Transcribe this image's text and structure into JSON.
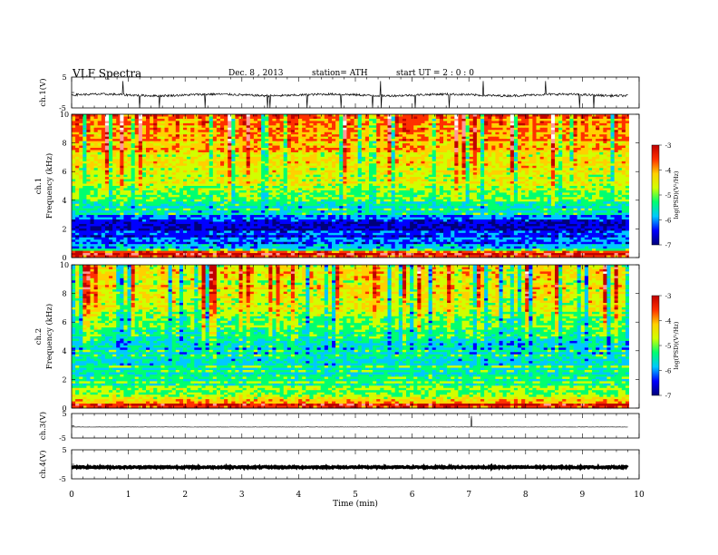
{
  "header": {
    "title": "VLF  Spectra",
    "date": "Dec. 8  , 2013",
    "station": "station= ATH",
    "start": "start  UT  =   2 : 0  : 0"
  },
  "colors": {
    "colormap": [
      "#00007a",
      "#0000ff",
      "#00c8ff",
      "#00ff70",
      "#d0ff00",
      "#ffd000",
      "#ff3000",
      "#c00000",
      "#ff9999",
      "#ffffff"
    ],
    "trace": "#000000"
  },
  "chart_data": [
    {
      "type": "line",
      "panel": "ch1-waveform",
      "ylabel": "ch.1(V)",
      "ylim": [
        -5,
        5
      ],
      "yticks": [
        "5",
        "-5"
      ],
      "xlim": [
        0,
        10
      ],
      "baseline": -0.8,
      "noise_amplitude": 0.35,
      "spikes": [
        0.9,
        1.2,
        1.55,
        2.35,
        3.45,
        3.5,
        4.15,
        4.75,
        5.3,
        5.45,
        6.05,
        6.65,
        7.25,
        8.35,
        8.95,
        9.2
      ]
    },
    {
      "type": "heatmap",
      "panel": "ch1-spectrogram",
      "ylabel": "ch.1\nFrequency  (kHz)",
      "ylim": [
        0,
        10
      ],
      "yticks": [
        "0",
        "2",
        "4",
        "6",
        "8",
        "10"
      ],
      "xlim": [
        0,
        9.8
      ],
      "colorbar": {
        "label": "log(PSD)(V²/Hz)",
        "range": [
          -7,
          -3
        ],
        "ticks": [
          "-3",
          "-4",
          "-5",
          "-6",
          "-7"
        ]
      },
      "profile_khz": [
        {
          "f": 0.0,
          "v": -4.6
        },
        {
          "f": 0.3,
          "v": -3.8
        },
        {
          "f": 0.6,
          "v": -5.9
        },
        {
          "f": 1.0,
          "v": -6.3
        },
        {
          "f": 1.6,
          "v": -6.5
        },
        {
          "f": 2.4,
          "v": -6.9
        },
        {
          "f": 3.0,
          "v": -6.0
        },
        {
          "f": 4.0,
          "v": -5.6
        },
        {
          "f": 5.0,
          "v": -5.2
        },
        {
          "f": 6.0,
          "v": -5.0
        },
        {
          "f": 7.0,
          "v": -4.9
        },
        {
          "f": 8.0,
          "v": -4.7
        },
        {
          "f": 9.0,
          "v": -4.6
        },
        {
          "f": 10.0,
          "v": -4.5
        }
      ]
    },
    {
      "type": "heatmap",
      "panel": "ch2-spectrogram",
      "ylabel": "ch.2\nFrequency  (kHz)",
      "ylim": [
        0,
        10
      ],
      "yticks": [
        "0",
        "2",
        "4",
        "6",
        "8",
        "10"
      ],
      "xlim": [
        0,
        9.8
      ],
      "colorbar": {
        "label": "log(PSD)(V²/Hz)",
        "range": [
          -7,
          -3
        ],
        "ticks": [
          "-3",
          "-4",
          "-5",
          "-6",
          "-7"
        ]
      },
      "profile_khz": [
        {
          "f": 0.0,
          "v": -4.4
        },
        {
          "f": 0.2,
          "v": -4.0
        },
        {
          "f": 0.6,
          "v": -5.0
        },
        {
          "f": 1.0,
          "v": -5.4
        },
        {
          "f": 2.0,
          "v": -5.7
        },
        {
          "f": 3.0,
          "v": -5.8
        },
        {
          "f": 4.0,
          "v": -5.9
        },
        {
          "f": 5.0,
          "v": -5.7
        },
        {
          "f": 6.0,
          "v": -5.4
        },
        {
          "f": 7.0,
          "v": -5.3
        },
        {
          "f": 8.0,
          "v": -5.1
        },
        {
          "f": 9.0,
          "v": -5.0
        },
        {
          "f": 10.0,
          "v": -4.9
        }
      ]
    },
    {
      "type": "line",
      "panel": "ch3-waveform",
      "ylabel": "ch.3(V)",
      "ylim": [
        -5,
        5
      ],
      "yticks": [
        "5",
        "-5"
      ],
      "xlim": [
        0,
        10
      ],
      "baseline": -0.5,
      "noise_amplitude": 0.05,
      "spikes": [
        7.05
      ]
    },
    {
      "type": "line",
      "panel": "ch4-waveform",
      "ylabel": "ch.4(V)",
      "ylim": [
        -5,
        5
      ],
      "yticks": [
        "5",
        "-5"
      ],
      "xlim": [
        0,
        10
      ],
      "baseline": -1.0,
      "noise_amplitude": 0.25,
      "spikes": []
    }
  ],
  "xaxis": {
    "label": "Time  (min)",
    "ticks": [
      "0",
      "1",
      "2",
      "3",
      "4",
      "5",
      "6",
      "7",
      "8",
      "9",
      "10"
    ]
  }
}
